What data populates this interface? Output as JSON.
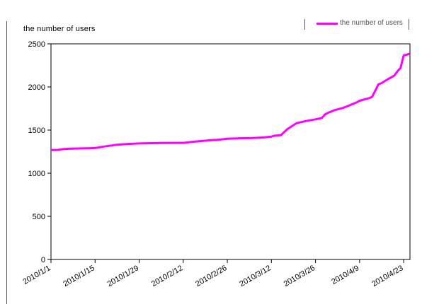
{
  "chart_data": {
    "type": "line",
    "ylabel": "the number of users",
    "xlabel": "",
    "title": "",
    "ylim": [
      0,
      2500
    ],
    "yticks": [
      0,
      500,
      1000,
      1500,
      2000,
      2500
    ],
    "xticks": [
      "2010/1/1",
      "2010/1/15",
      "2010/1/29",
      "2010/2/12",
      "2010/2/26",
      "2010/3/12",
      "2010/3/26",
      "2010/4/9",
      "2010/4/23"
    ],
    "xlim": [
      "2010/1/1",
      "2010/4/25"
    ],
    "grid": false,
    "legend_position": "top-right",
    "series": [
      {
        "name": "the number of users",
        "color": "#ff00ff",
        "x": [
          "2010/1/1",
          "2010/1/3",
          "2010/1/5",
          "2010/1/8",
          "2010/1/11",
          "2010/1/15",
          "2010/1/18",
          "2010/1/22",
          "2010/1/26",
          "2010/1/29",
          "2010/2/2",
          "2010/2/6",
          "2010/2/12",
          "2010/2/16",
          "2010/2/20",
          "2010/2/24",
          "2010/2/26",
          "2010/3/2",
          "2010/3/6",
          "2010/3/10",
          "2010/3/12",
          "2010/3/13",
          "2010/3/15",
          "2010/3/17",
          "2010/3/20",
          "2010/3/23",
          "2010/3/26",
          "2010/3/28",
          "2010/3/29",
          "2010/3/30",
          "2010/4/1",
          "2010/4/4",
          "2010/4/6",
          "2010/4/8",
          "2010/4/9",
          "2010/4/11",
          "2010/4/12",
          "2010/4/13",
          "2010/4/15",
          "2010/4/16",
          "2010/4/18",
          "2010/4/20",
          "2010/4/21",
          "2010/4/22",
          "2010/4/23",
          "2010/4/25"
        ],
        "y": [
          1268,
          1270,
          1280,
          1285,
          1288,
          1292,
          1310,
          1330,
          1340,
          1345,
          1348,
          1350,
          1352,
          1368,
          1380,
          1392,
          1400,
          1405,
          1408,
          1416,
          1425,
          1435,
          1440,
          1510,
          1580,
          1605,
          1625,
          1640,
          1680,
          1700,
          1730,
          1760,
          1790,
          1820,
          1840,
          1860,
          1870,
          1885,
          2030,
          2045,
          2090,
          2130,
          2180,
          2220,
          2365,
          2385
        ]
      }
    ]
  }
}
